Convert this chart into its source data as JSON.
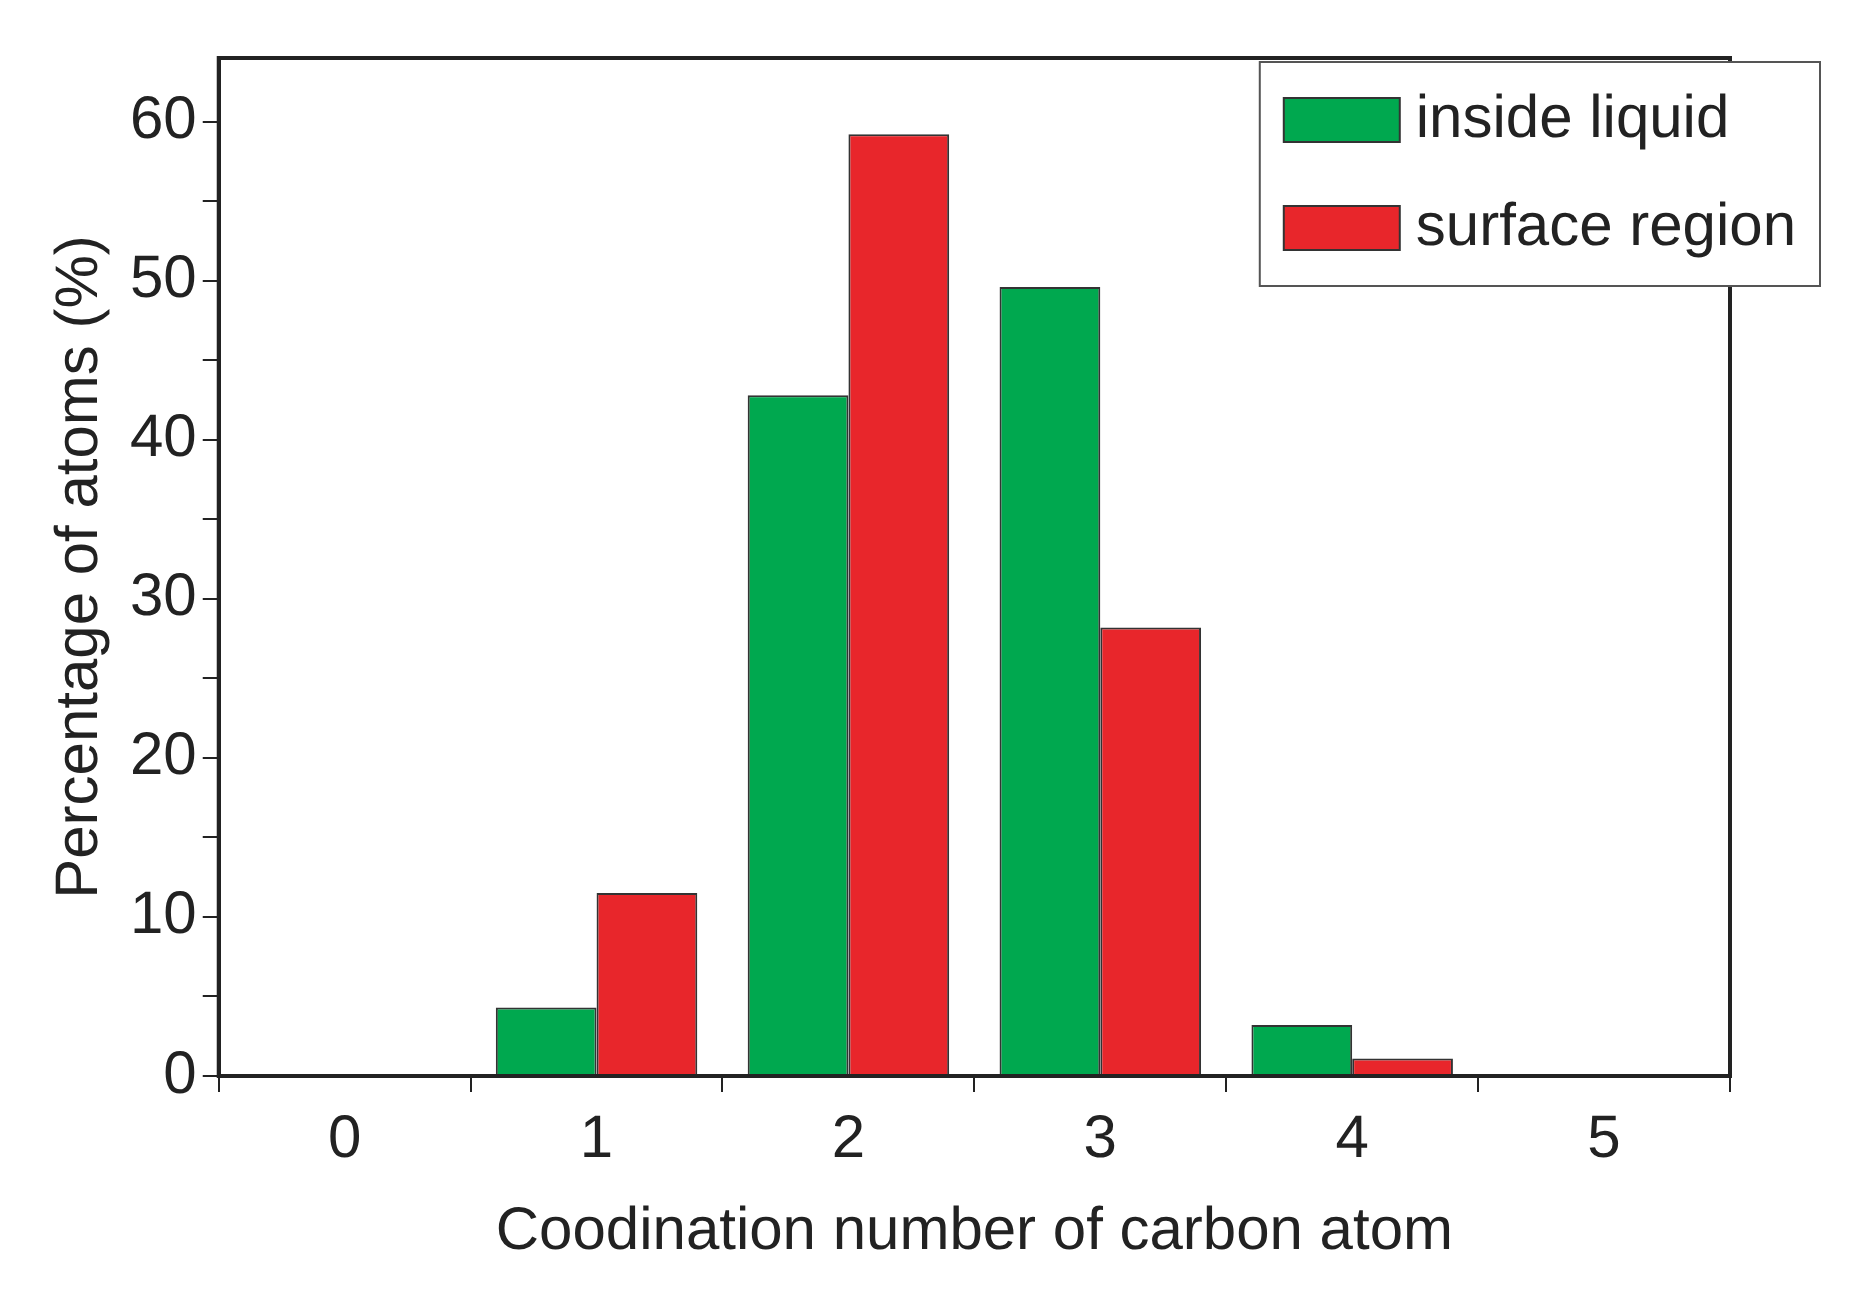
{
  "chart_data": {
    "type": "bar",
    "xlabel": "Coodination number of carbon atom",
    "ylabel": "Percentage of atoms (%)",
    "categories": [
      "0",
      "1",
      "2",
      "3",
      "4",
      "5"
    ],
    "series": [
      {
        "name": "inside liquid",
        "color": "#00a84f",
        "values": [
          0,
          4.3,
          42.8,
          49.6,
          3.2,
          0
        ]
      },
      {
        "name": "surface region",
        "color": "#e8262b",
        "values": [
          0,
          11.5,
          59.2,
          28.2,
          1.1,
          0
        ]
      }
    ],
    "ylim": [
      0,
      64
    ],
    "yticks": [
      0,
      {
        "value": 5,
        "label": null
      },
      10,
      {
        "value": 15,
        "label": null
      },
      20,
      {
        "value": 25,
        "label": null
      },
      30,
      {
        "value": 35,
        "label": null
      },
      40,
      {
        "value": 45,
        "label": null
      },
      50,
      {
        "value": 55,
        "label": null
      },
      60
    ],
    "legend": "top right"
  }
}
